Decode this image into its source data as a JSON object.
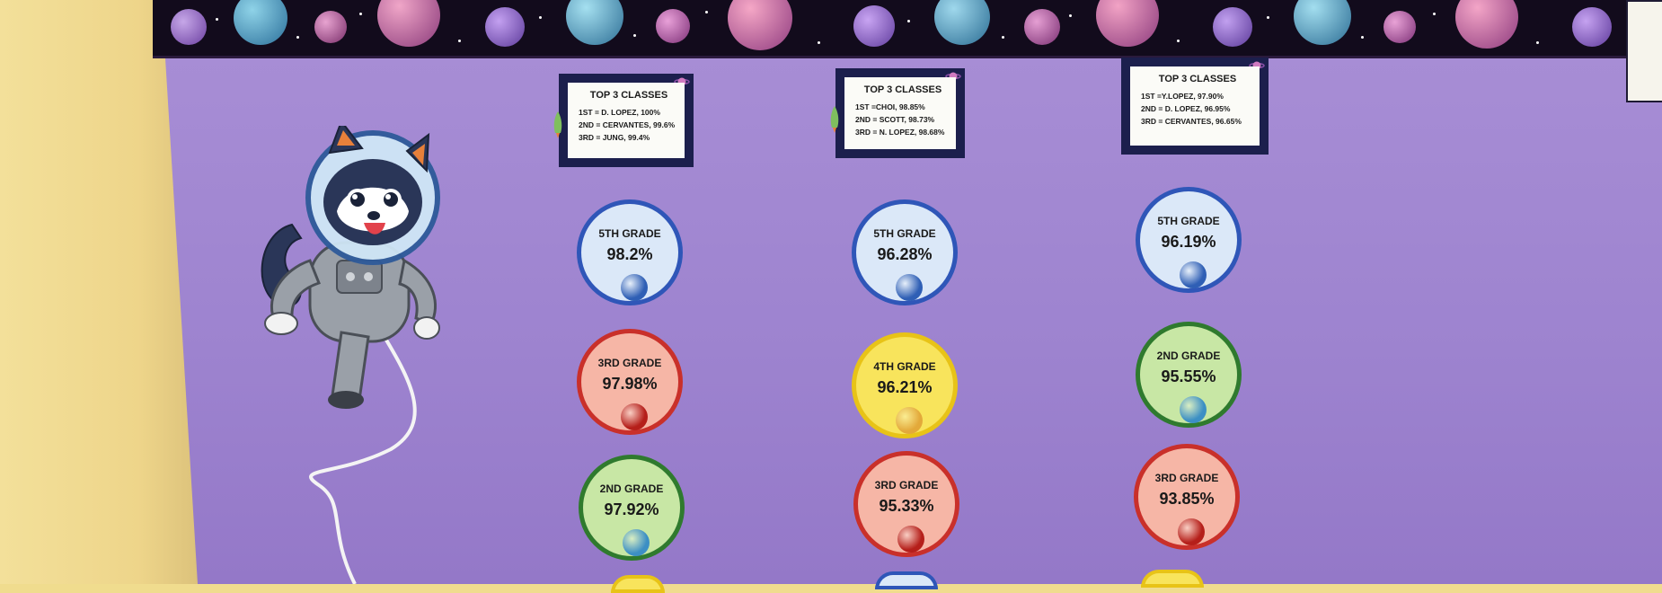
{
  "colors": {
    "board": "#a08ad4",
    "wall": "#f0dc8e",
    "notice_frame": "#1c1f4d",
    "blue_ring": "#2f56b8",
    "red_ring": "#c9302a",
    "green_ring": "#2f7a2e",
    "yellow_ring": "#e8c317"
  },
  "notices": [
    {
      "title": "TOP 3 CLASSES",
      "lines": [
        "1ST = D. LOPEZ, 100%",
        "2ND = CERVANTES, 99.6%",
        "3RD = JUNG, 99.4%"
      ]
    },
    {
      "title": "TOP 3 CLASSES",
      "lines": [
        "1ST =CHOI, 98.85%",
        "2ND = SCOTT, 98.73%",
        "3RD = N. LOPEZ, 98.68%"
      ]
    },
    {
      "title": "TOP 3 CLASSES",
      "lines": [
        "1ST =Y.LOPEZ, 97.90%",
        "2ND = D. LOPEZ, 96.95%",
        "3RD = CERVANTES, 96.65%"
      ]
    }
  ],
  "columns": [
    {
      "badges": [
        {
          "grade": "5TH GRADE",
          "percent": "98.2%",
          "planet": "neptune-icon",
          "fill": "#dbe8f8",
          "ring": "#2f56b8",
          "orb": "#2f5fb5"
        },
        {
          "grade": "3RD GRADE",
          "percent": "97.98%",
          "planet": "mars-icon",
          "fill": "#f6b6a6",
          "ring": "#c9302a",
          "orb": "#b51f1a"
        },
        {
          "grade": "2ND GRADE",
          "percent": "97.92%",
          "planet": "earth-icon",
          "fill": "#c8e7a5",
          "ring": "#2f7a2e",
          "orb": "#3c8fc4"
        }
      ]
    },
    {
      "badges": [
        {
          "grade": "5TH GRADE",
          "percent": "96.28%",
          "planet": "neptune-icon",
          "fill": "#dbe8f8",
          "ring": "#2f56b8",
          "orb": "#2f5fb5"
        },
        {
          "grade": "4TH GRADE",
          "percent": "96.21%",
          "planet": "venus-icon",
          "fill": "#f8e45c",
          "ring": "#e8c317",
          "orb": "#e3a93a"
        },
        {
          "grade": "3RD GRADE",
          "percent": "95.33%",
          "planet": "mars-icon",
          "fill": "#f6b6a6",
          "ring": "#c9302a",
          "orb": "#b51f1a"
        }
      ]
    },
    {
      "badges": [
        {
          "grade": "5TH GRADE",
          "percent": "96.19%",
          "planet": "neptune-icon",
          "fill": "#dbe8f8",
          "ring": "#2f56b8",
          "orb": "#2f5fb5"
        },
        {
          "grade": "2ND GRADE",
          "percent": "95.55%",
          "planet": "earth-icon",
          "fill": "#c8e7a5",
          "ring": "#2f7a2e",
          "orb": "#3c8fc4"
        },
        {
          "grade": "3RD GRADE",
          "percent": "93.85%",
          "planet": "mars-icon",
          "fill": "#f6b6a6",
          "ring": "#c9302a",
          "orb": "#b51f1a"
        }
      ]
    }
  ]
}
